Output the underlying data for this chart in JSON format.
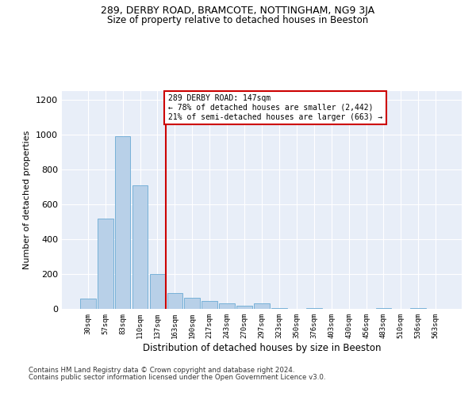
{
  "title_line1": "289, DERBY ROAD, BRAMCOTE, NOTTINGHAM, NG9 3JA",
  "title_line2": "Size of property relative to detached houses in Beeston",
  "xlabel": "Distribution of detached houses by size in Beeston",
  "ylabel": "Number of detached properties",
  "bar_labels": [
    "30sqm",
    "57sqm",
    "83sqm",
    "110sqm",
    "137sqm",
    "163sqm",
    "190sqm",
    "217sqm",
    "243sqm",
    "270sqm",
    "297sqm",
    "323sqm",
    "350sqm",
    "376sqm",
    "403sqm",
    "430sqm",
    "456sqm",
    "483sqm",
    "510sqm",
    "536sqm",
    "563sqm"
  ],
  "bar_values": [
    60,
    520,
    990,
    710,
    200,
    90,
    65,
    45,
    30,
    20,
    30,
    5,
    0,
    5,
    0,
    0,
    0,
    5,
    0,
    5,
    0
  ],
  "bar_color": "#b8d0e8",
  "bar_edge_color": "#6aaad4",
  "bg_color": "#e8eef8",
  "vline_x": 4.5,
  "vline_color": "#cc0000",
  "annotation_text": "289 DERBY ROAD: 147sqm\n← 78% of detached houses are smaller (2,442)\n21% of semi-detached houses are larger (663) →",
  "annotation_box_color": "#ffffff",
  "annotation_box_edge": "#cc0000",
  "ylim": [
    0,
    1250
  ],
  "yticks": [
    0,
    200,
    400,
    600,
    800,
    1000,
    1200
  ],
  "footer_line1": "Contains HM Land Registry data © Crown copyright and database right 2024.",
  "footer_line2": "Contains public sector information licensed under the Open Government Licence v3.0."
}
